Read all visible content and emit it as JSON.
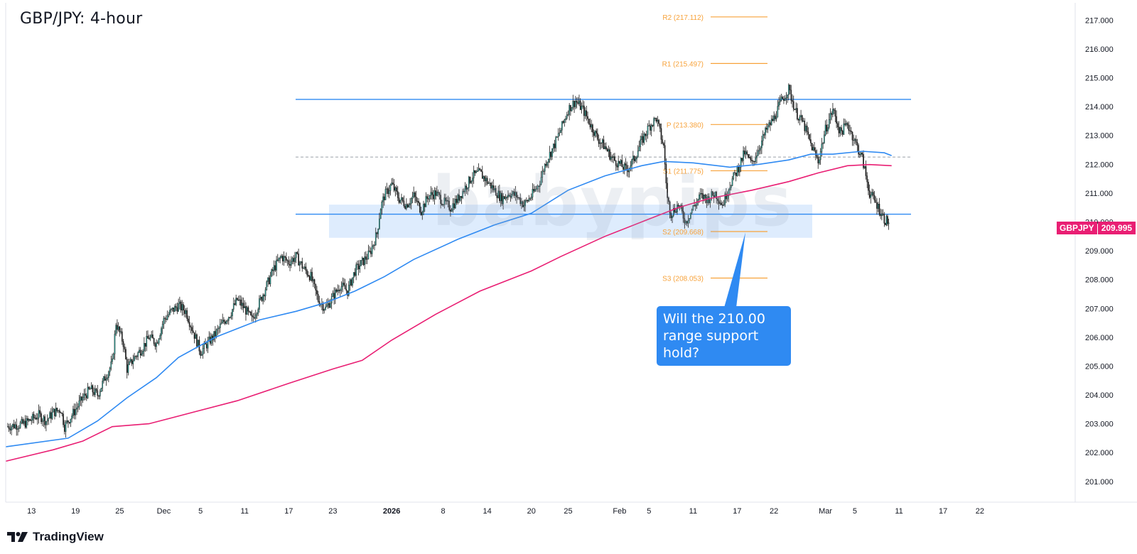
{
  "chart_title": "GBP/JPY: 4-hour",
  "watermark": "babypips",
  "brand": "TradingView",
  "symbol": "GBPJPY",
  "last_price": "209.995",
  "annotation": {
    "line1": "Will the 210.00",
    "line2": "range support hold?"
  },
  "colors": {
    "bull": "#26a69a",
    "bear": "#1b1b1b",
    "ema_fast": "#2f8af2",
    "ema_slow": "#e91e73",
    "range": "#2f8af2",
    "pivot": "#f7a23a",
    "badge": "#e91e73"
  },
  "chart_data": {
    "type": "line",
    "title": "GBP/JPY: 4-hour",
    "ylim": [
      200.7,
      217.6
    ],
    "y_ticks": [
      "201.000",
      "202.000",
      "203.000",
      "204.000",
      "205.000",
      "206.000",
      "207.000",
      "208.000",
      "209.000",
      "210.000",
      "211.000",
      "212.000",
      "213.000",
      "214.000",
      "215.000",
      "216.000",
      "217.000"
    ],
    "x_ticks": [
      {
        "label": "13",
        "day": 0
      },
      {
        "label": "19",
        "day": 6
      },
      {
        "label": "25",
        "day": 12
      },
      {
        "label": "Dec",
        "day": 18
      },
      {
        "label": "5",
        "day": 23
      },
      {
        "label": "11",
        "day": 29
      },
      {
        "label": "17",
        "day": 35
      },
      {
        "label": "23",
        "day": 41
      },
      {
        "label": "2026",
        "day": 49
      },
      {
        "label": "8",
        "day": 56
      },
      {
        "label": "14",
        "day": 62
      },
      {
        "label": "20",
        "day": 68
      },
      {
        "label": "25",
        "day": 73
      },
      {
        "label": "Feb",
        "day": 80
      },
      {
        "label": "5",
        "day": 84
      },
      {
        "label": "11",
        "day": 90
      },
      {
        "label": "17",
        "day": 96
      },
      {
        "label": "22",
        "day": 101
      },
      {
        "label": "Mar",
        "day": 108
      },
      {
        "label": "5",
        "day": 112
      },
      {
        "label": "11",
        "day": 118
      },
      {
        "label": "17",
        "day": 124
      },
      {
        "label": "22",
        "day": 129
      }
    ],
    "xlim": [
      -3.5,
      141
    ],
    "series": [
      {
        "name": "GBPJPY",
        "style": "candles",
        "points": [
          [
            -3.4,
            202.9
          ],
          [
            -1,
            203.0
          ],
          [
            1,
            203.3
          ],
          [
            2,
            203.1
          ],
          [
            3,
            203.4
          ],
          [
            4,
            203.5
          ],
          [
            4.5,
            202.9
          ],
          [
            5.5,
            203.3
          ],
          [
            7,
            203.9
          ],
          [
            8,
            204.2
          ],
          [
            9,
            204.0
          ],
          [
            10,
            204.6
          ],
          [
            11,
            205.1
          ],
          [
            11.5,
            206.5
          ],
          [
            12.5,
            205.8
          ],
          [
            13,
            204.9
          ],
          [
            14,
            205.3
          ],
          [
            15,
            205.6
          ],
          [
            16,
            206.0
          ],
          [
            17,
            205.8
          ],
          [
            18,
            206.6
          ],
          [
            19,
            206.9
          ],
          [
            20,
            207.1
          ],
          [
            21,
            206.9
          ],
          [
            22,
            206.2
          ],
          [
            23,
            205.5
          ],
          [
            24,
            205.8
          ],
          [
            25,
            206.1
          ],
          [
            26,
            206.5
          ],
          [
            27,
            206.8
          ],
          [
            28,
            207.3
          ],
          [
            29,
            207.0
          ],
          [
            30,
            206.6
          ],
          [
            31,
            207.2
          ],
          [
            32,
            207.8
          ],
          [
            33,
            208.4
          ],
          [
            34,
            208.8
          ],
          [
            35,
            208.6
          ],
          [
            36,
            208.8
          ],
          [
            37,
            208.4
          ],
          [
            38,
            208.1
          ],
          [
            39,
            207.3
          ],
          [
            40,
            207.0
          ],
          [
            41,
            207.4
          ],
          [
            42,
            207.8
          ],
          [
            43,
            207.6
          ],
          [
            44,
            208.3
          ],
          [
            45,
            208.6
          ],
          [
            46,
            208.9
          ],
          [
            47,
            209.6
          ],
          [
            47.5,
            210.5
          ],
          [
            48,
            210.9
          ],
          [
            49,
            211.3
          ],
          [
            50,
            210.8
          ],
          [
            51,
            210.6
          ],
          [
            52,
            210.9
          ],
          [
            53,
            210.4
          ],
          [
            54,
            210.9
          ],
          [
            55,
            211.0
          ],
          [
            56,
            210.7
          ],
          [
            57,
            210.5
          ],
          [
            58,
            210.8
          ],
          [
            59,
            211.2
          ],
          [
            60,
            211.6
          ],
          [
            61,
            211.7
          ],
          [
            62,
            211.4
          ],
          [
            63,
            211.1
          ],
          [
            64,
            210.8
          ],
          [
            65,
            211.0
          ],
          [
            66,
            210.9
          ],
          [
            67,
            210.6
          ],
          [
            68,
            210.9
          ],
          [
            69,
            211.3
          ],
          [
            70,
            212.1
          ],
          [
            71,
            212.6
          ],
          [
            72,
            213.2
          ],
          [
            73,
            213.9
          ],
          [
            74,
            214.2
          ],
          [
            75,
            213.9
          ],
          [
            76,
            213.4
          ],
          [
            77,
            212.9
          ],
          [
            78,
            212.6
          ],
          [
            79,
            212.2
          ],
          [
            80,
            212.0
          ],
          [
            81,
            211.8
          ],
          [
            82,
            212.2
          ],
          [
            83,
            212.8
          ],
          [
            84,
            213.3
          ],
          [
            85,
            213.6
          ],
          [
            86,
            212.6
          ],
          [
            86.5,
            210.8
          ],
          [
            87,
            210.3
          ],
          [
            88,
            210.6
          ],
          [
            89,
            210.0
          ],
          [
            90,
            210.5
          ],
          [
            91,
            210.9
          ],
          [
            92,
            210.8
          ],
          [
            93,
            211.0
          ],
          [
            94,
            210.6
          ],
          [
            95,
            211.3
          ],
          [
            96,
            211.8
          ],
          [
            97,
            212.4
          ],
          [
            98,
            212.0
          ],
          [
            99,
            212.6
          ],
          [
            100,
            213.2
          ],
          [
            101,
            213.6
          ],
          [
            102,
            214.2
          ],
          [
            103,
            214.6
          ],
          [
            104,
            213.8
          ],
          [
            105,
            213.4
          ],
          [
            106,
            212.7
          ],
          [
            107,
            212.1
          ],
          [
            108,
            213.2
          ],
          [
            109,
            213.9
          ],
          [
            110,
            213.1
          ],
          [
            111,
            213.4
          ],
          [
            112,
            212.8
          ],
          [
            113,
            212.2
          ],
          [
            114,
            211.0
          ],
          [
            115,
            210.6
          ],
          [
            116,
            210.1
          ],
          [
            116.6,
            209.98
          ]
        ]
      },
      {
        "name": "EMA fast",
        "style": "line",
        "points": [
          [
            -3.5,
            202.2
          ],
          [
            5,
            202.5
          ],
          [
            9,
            203.1
          ],
          [
            13,
            203.9
          ],
          [
            17,
            204.6
          ],
          [
            20,
            205.3
          ],
          [
            25,
            206.0
          ],
          [
            31,
            206.6
          ],
          [
            36,
            206.9
          ],
          [
            40,
            207.2
          ],
          [
            44,
            207.6
          ],
          [
            48,
            208.1
          ],
          [
            52,
            208.7
          ],
          [
            58,
            209.4
          ],
          [
            63,
            209.9
          ],
          [
            68,
            210.3
          ],
          [
            73,
            211.1
          ],
          [
            78,
            211.6
          ],
          [
            83,
            211.95
          ],
          [
            86,
            212.1
          ],
          [
            90,
            212.05
          ],
          [
            95,
            211.9
          ],
          [
            99,
            212.0
          ],
          [
            103,
            212.15
          ],
          [
            106,
            212.35
          ],
          [
            109,
            212.35
          ],
          [
            113,
            212.45
          ],
          [
            116,
            212.4
          ],
          [
            117,
            212.3
          ]
        ]
      },
      {
        "name": "EMA slow",
        "style": "line",
        "points": [
          [
            -3.5,
            201.7
          ],
          [
            3,
            202.1
          ],
          [
            7,
            202.4
          ],
          [
            11,
            202.9
          ],
          [
            16,
            203.0
          ],
          [
            22,
            203.4
          ],
          [
            28,
            203.8
          ],
          [
            35,
            204.4
          ],
          [
            41,
            204.9
          ],
          [
            45,
            205.2
          ],
          [
            49,
            205.9
          ],
          [
            55,
            206.8
          ],
          [
            61,
            207.6
          ],
          [
            68,
            208.3
          ],
          [
            72,
            208.8
          ],
          [
            78,
            209.5
          ],
          [
            84,
            210.1
          ],
          [
            88,
            210.5
          ],
          [
            92,
            210.8
          ],
          [
            98,
            211.1
          ],
          [
            103,
            211.4
          ],
          [
            107,
            211.7
          ],
          [
            111,
            211.95
          ],
          [
            114,
            211.99
          ],
          [
            117,
            211.95
          ]
        ]
      }
    ],
    "levels": [
      {
        "name": "R2",
        "label": "R2 (217.112)",
        "value": 217.112,
        "kind": "pivot"
      },
      {
        "name": "R1",
        "label": "R1 (215.497)",
        "value": 215.497,
        "kind": "pivot"
      },
      {
        "name": "P",
        "label": "P (213.380)",
        "value": 213.38,
        "kind": "pivot"
      },
      {
        "name": "S1",
        "label": "S1 (211.775)",
        "value": 211.775,
        "kind": "pivot"
      },
      {
        "name": "S2",
        "label": "S2 (209.668)",
        "value": 209.668,
        "kind": "pivot"
      },
      {
        "name": "S3",
        "label": "S3 (208.053)",
        "value": 208.053,
        "kind": "pivot"
      },
      {
        "name": "range-top",
        "value": 214.25,
        "kind": "range"
      },
      {
        "name": "range-mid",
        "value": 212.25,
        "kind": "dashed"
      },
      {
        "name": "range-bottom",
        "value": 210.27,
        "kind": "range"
      }
    ],
    "support_zone": [
      209.45,
      210.6
    ],
    "grid": false,
    "legend": "none"
  }
}
